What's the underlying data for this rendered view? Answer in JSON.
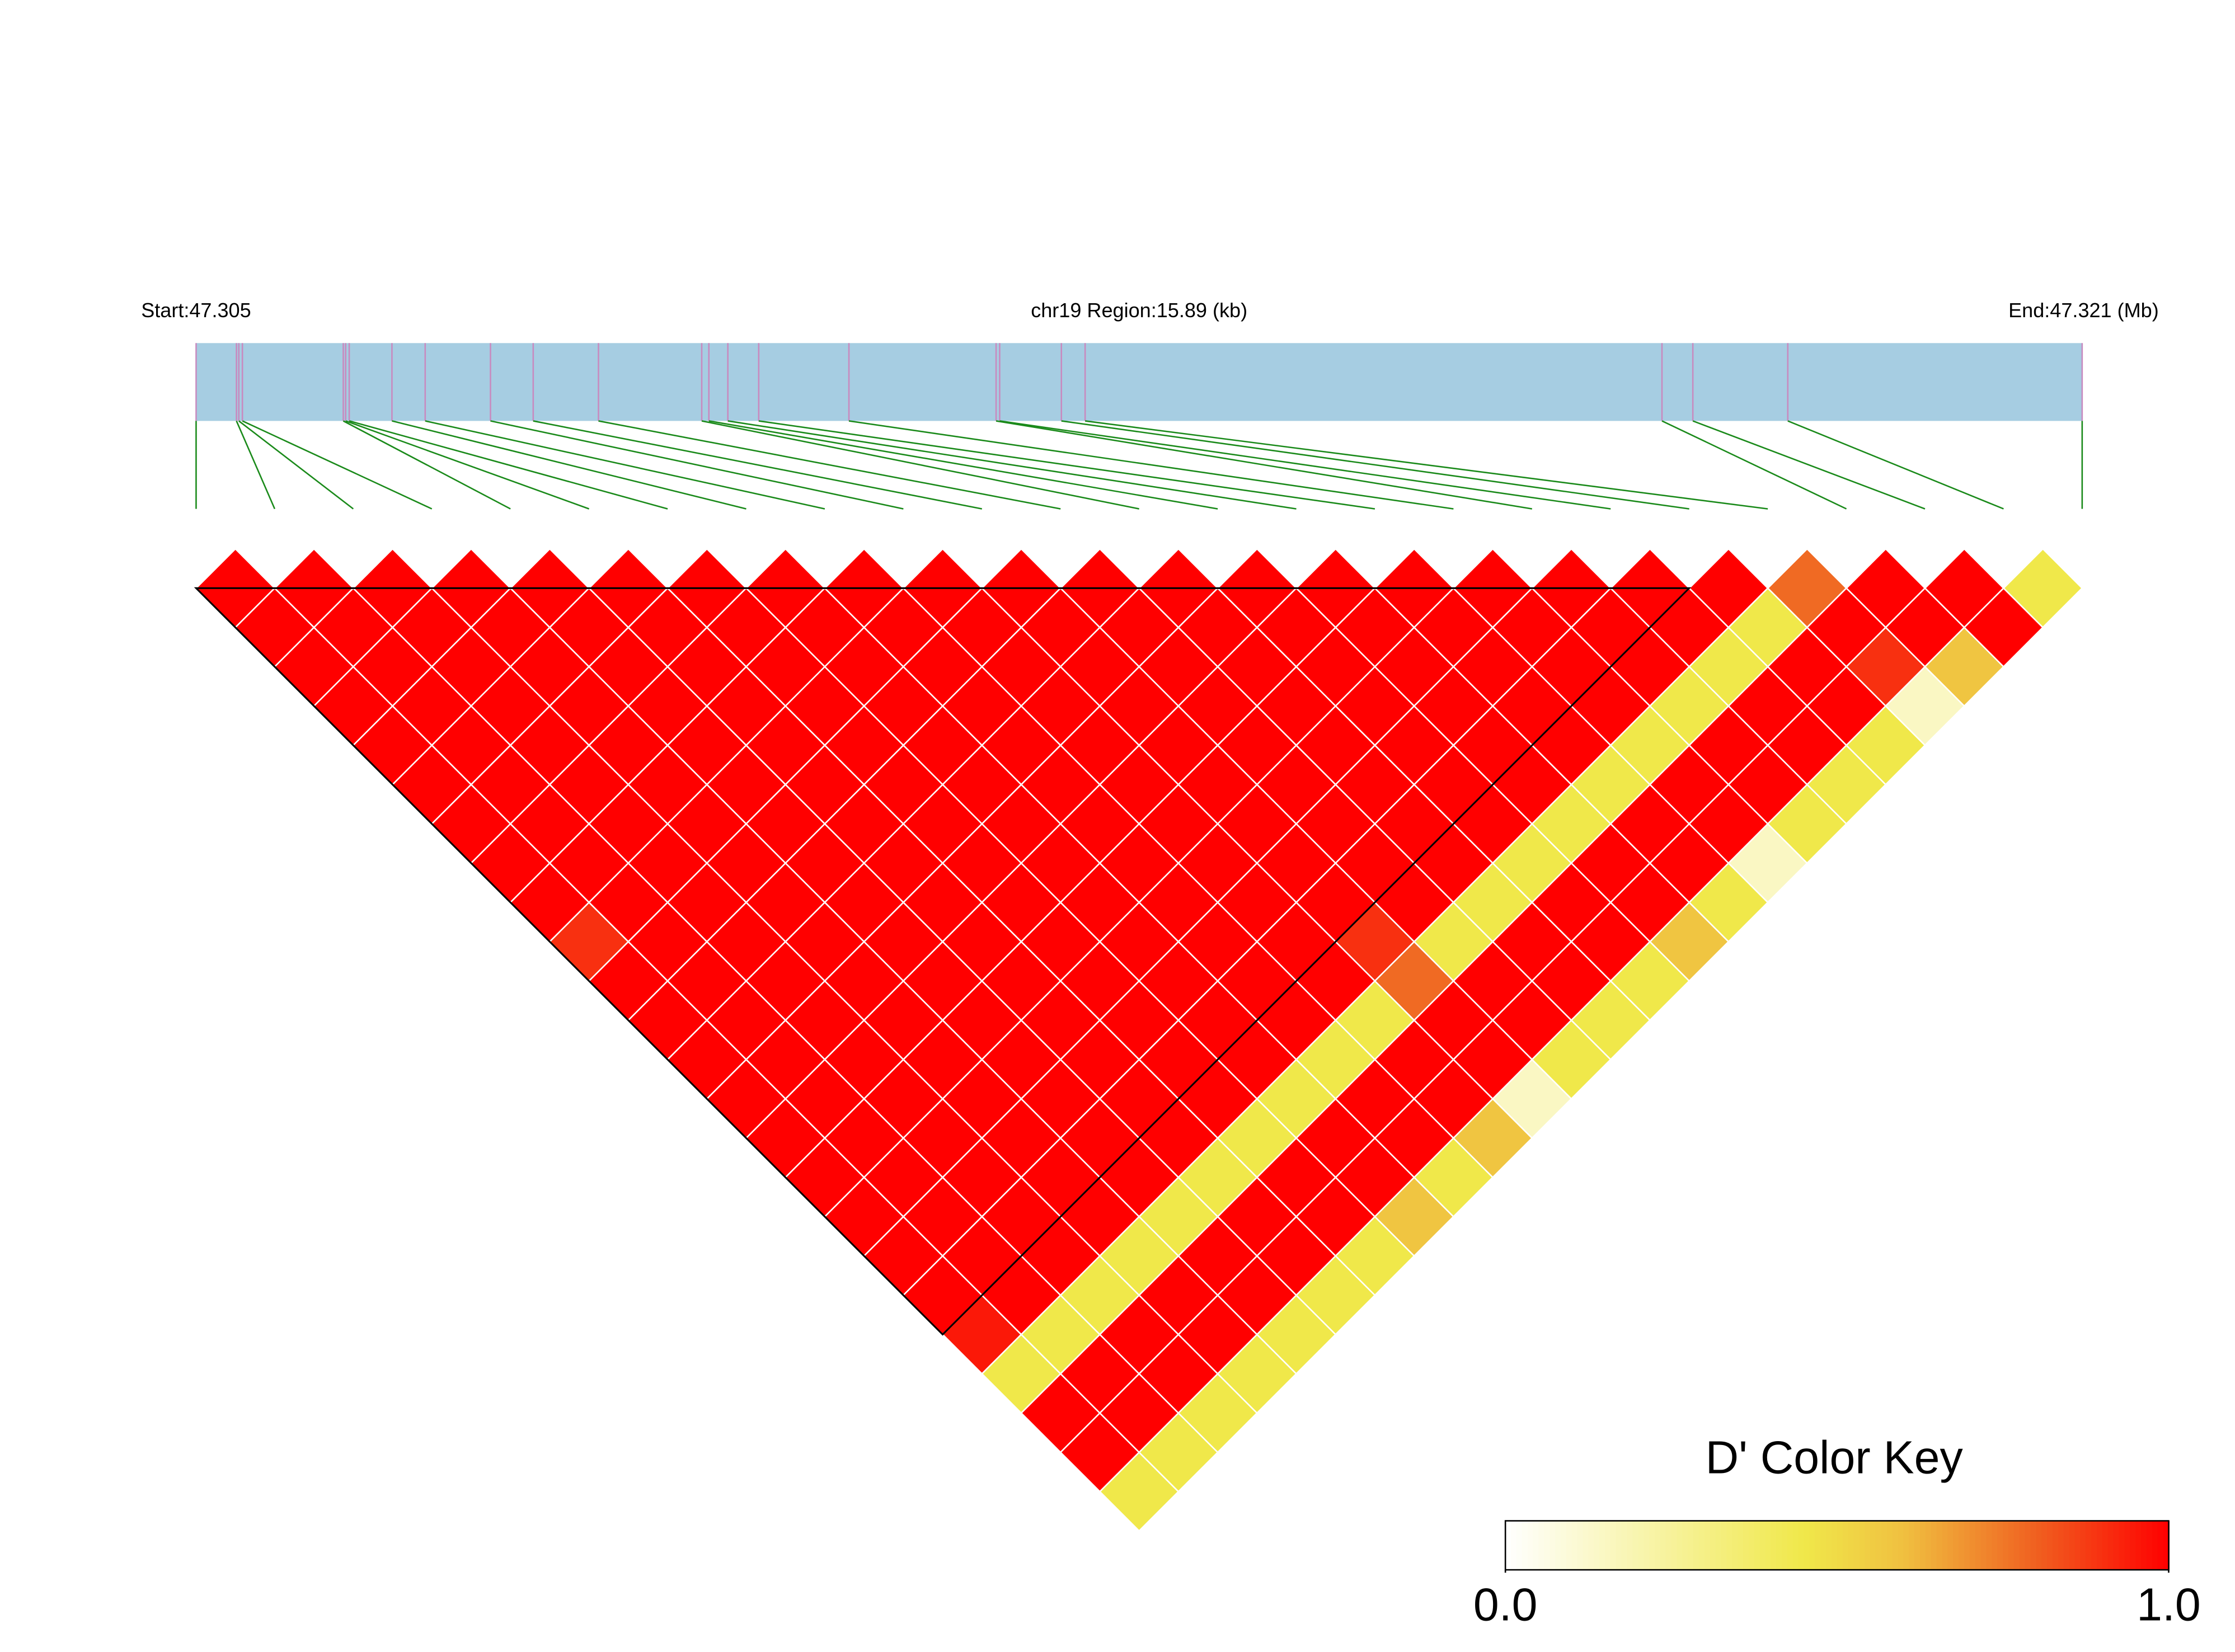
{
  "chart_data": {
    "type": "heatmap",
    "start_label": "Start:47.305",
    "title": "chr19 Region:15.89 (kb)",
    "end_label": "End:47.321 (Mb)",
    "key_title": "D' Color Key",
    "clim": [
      0,
      1
    ],
    "key_ticks": [
      {
        "value": 0,
        "label": "0.0"
      },
      {
        "value": 1,
        "label": "1.0"
      }
    ],
    "xlim": [
      0,
      15.89
    ],
    "snp_offsets_kb": [
      0,
      0.34,
      0.36,
      0.39,
      1.24,
      1.26,
      1.29,
      1.65,
      1.93,
      2.48,
      2.84,
      3.39,
      4.26,
      4.32,
      4.48,
      4.74,
      5.5,
      6.74,
      6.77,
      7.29,
      7.49,
      12.35,
      12.61,
      13.41,
      15.89
    ],
    "values": [
      [
        1,
        1,
        1,
        1,
        1,
        1,
        1,
        1,
        1,
        0.9,
        1,
        1,
        1,
        1,
        1,
        1,
        1,
        1,
        1,
        0.95,
        0.45,
        1,
        1,
        0.45
      ],
      [
        1,
        1,
        1,
        1,
        1,
        1,
        1,
        1,
        1,
        1,
        1,
        1,
        1,
        1,
        1,
        1,
        1,
        1,
        1,
        0.45,
        1,
        1,
        0.45
      ],
      [
        1,
        1,
        1,
        1,
        1,
        1,
        1,
        1,
        1,
        1,
        1,
        1,
        1,
        1,
        1,
        1,
        1,
        1,
        0.45,
        1,
        1,
        0.45
      ],
      [
        1,
        1,
        1,
        1,
        1,
        1,
        1,
        1,
        1,
        1,
        1,
        1,
        1,
        1,
        1,
        1,
        1,
        0.45,
        1,
        1,
        0.45
      ],
      [
        1,
        1,
        1,
        1,
        1,
        1,
        1,
        1,
        1,
        1,
        1,
        1,
        1,
        1,
        1,
        1,
        0.45,
        1,
        1,
        0.45
      ],
      [
        1,
        1,
        1,
        1,
        1,
        1,
        1,
        1,
        1,
        1,
        1,
        1,
        1,
        1,
        1,
        0.45,
        1,
        1,
        0.45
      ],
      [
        1,
        1,
        1,
        1,
        1,
        1,
        1,
        1,
        1,
        1,
        1,
        1,
        1,
        1,
        0.45,
        1,
        1,
        0.45
      ],
      [
        1,
        1,
        1,
        1,
        1,
        1,
        1,
        1,
        1,
        1,
        1,
        1,
        1,
        0.45,
        1,
        1,
        0.58
      ],
      [
        1,
        1,
        1,
        1,
        1,
        1,
        1,
        1,
        1,
        1,
        1,
        1,
        0.45,
        1,
        1,
        0.45
      ],
      [
        1,
        1,
        1,
        1,
        1,
        1,
        1,
        1,
        1,
        1,
        1,
        0.45,
        1,
        1,
        0.58
      ],
      [
        1,
        1,
        1,
        1,
        1,
        1,
        1,
        1,
        1,
        0.9,
        0.78,
        1,
        1,
        0.15
      ],
      [
        1,
        1,
        1,
        1,
        1,
        1,
        1,
        1,
        1,
        0.45,
        1,
        1,
        0.45
      ],
      [
        1,
        1,
        1,
        1,
        1,
        1,
        1,
        1,
        0.45,
        1,
        1,
        0.45
      ],
      [
        1,
        1,
        1,
        1,
        1,
        1,
        1,
        0.45,
        1,
        1,
        0.45
      ],
      [
        1,
        1,
        1,
        1,
        1,
        1,
        0.45,
        1,
        1,
        0.58
      ],
      [
        1,
        1,
        1,
        1,
        1,
        0.45,
        1,
        1,
        0.45
      ],
      [
        1,
        1,
        1,
        1,
        0.45,
        1,
        1,
        0.15
      ],
      [
        1,
        1,
        1,
        0.45,
        1,
        1,
        0.45
      ],
      [
        1,
        1,
        0.45,
        1,
        1,
        0.45
      ],
      [
        1,
        0.45,
        1,
        1,
        0.45
      ],
      [
        0.78,
        1,
        0.9,
        0.15
      ],
      [
        1,
        1,
        0.58
      ],
      [
        1,
        1
      ],
      [
        0.45
      ]
    ]
  }
}
